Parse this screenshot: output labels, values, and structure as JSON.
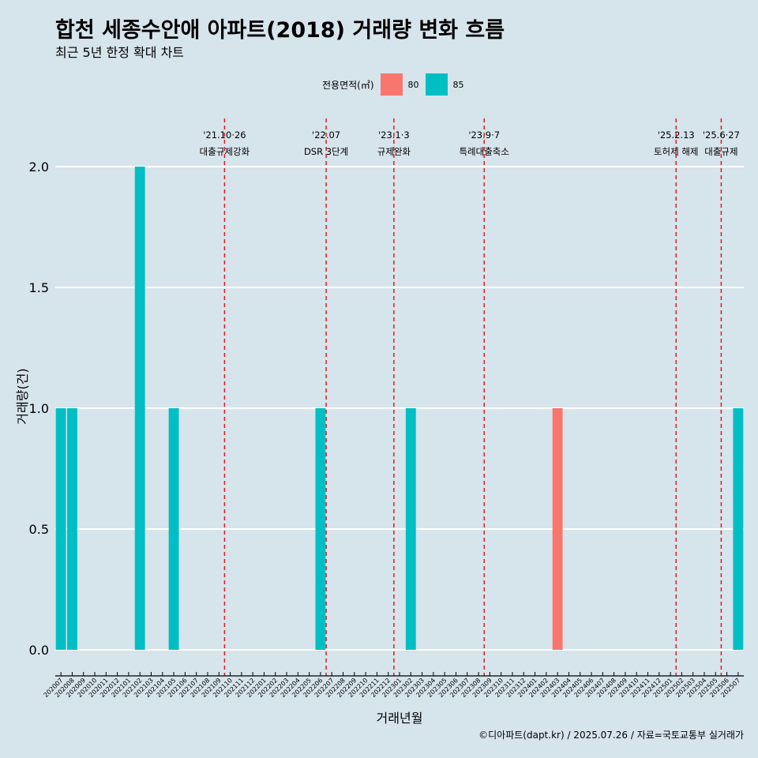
{
  "title": "합천 세종수안애 아파트(2018) 거래량 변화 흐름",
  "subtitle": "최근 5년 한정 확대 차트",
  "caption": "©디아파트(dapt.kr) / 2025.07.26 / 자료=국토교통부 실거래가",
  "colors": {
    "background": "#d6e4ec",
    "s80": "#f8766d",
    "s85": "#00bfc4",
    "event_line": "#e41a1c"
  },
  "chart_data": {
    "type": "bar",
    "xlabel": "거래년월",
    "ylabel": "거래량(건)",
    "ylim": [
      0,
      2.0
    ],
    "yticks": [
      0.0,
      0.5,
      1.0,
      1.5,
      2.0
    ],
    "grid": true,
    "legend": {
      "title": "전용면적(㎡)",
      "position": "top",
      "entries": [
        "80",
        "85"
      ]
    },
    "categories": [
      "202007",
      "202008",
      "202009",
      "202010",
      "202011",
      "202012",
      "202101",
      "202102",
      "202103",
      "202104",
      "202105",
      "202106",
      "202107",
      "202108",
      "202109",
      "202110",
      "202111",
      "202112",
      "202201",
      "202202",
      "202203",
      "202204",
      "202205",
      "202206",
      "202207",
      "202208",
      "202209",
      "202210",
      "202211",
      "202212",
      "202301",
      "202302",
      "202303",
      "202304",
      "202305",
      "202306",
      "202307",
      "202308",
      "202309",
      "202310",
      "202311",
      "202312",
      "202401",
      "202402",
      "202403",
      "202404",
      "202405",
      "202406",
      "202407",
      "202408",
      "202409",
      "202410",
      "202411",
      "202412",
      "202501",
      "202502",
      "202503",
      "202504",
      "202505",
      "202506",
      "202507"
    ],
    "series": [
      {
        "name": "80",
        "values": [
          0,
          0,
          0,
          0,
          0,
          0,
          0,
          0,
          0,
          0,
          0,
          0,
          0,
          0,
          0,
          0,
          0,
          0,
          0,
          0,
          0,
          0,
          0,
          0,
          0,
          0,
          0,
          0,
          0,
          0,
          0,
          0,
          0,
          0,
          0,
          0,
          0,
          0,
          0,
          0,
          0,
          0,
          0,
          0,
          1,
          0,
          0,
          0,
          0,
          0,
          0,
          0,
          0,
          0,
          0,
          0,
          0,
          0,
          0,
          0,
          0
        ]
      },
      {
        "name": "85",
        "values": [
          1,
          1,
          0,
          0,
          0,
          0,
          0,
          2,
          0,
          0,
          1,
          0,
          0,
          0,
          0,
          0,
          0,
          0,
          0,
          0,
          0,
          0,
          0,
          1,
          0,
          0,
          0,
          0,
          0,
          0,
          0,
          1,
          0,
          0,
          0,
          0,
          0,
          0,
          0,
          0,
          0,
          0,
          0,
          0,
          0,
          0,
          0,
          0,
          0,
          0,
          0,
          0,
          0,
          0,
          0,
          0,
          0,
          0,
          0,
          0,
          1
        ]
      }
    ],
    "events": [
      {
        "pos": 15.0,
        "date": "'21.10·26",
        "label": "대출규제강화",
        "dashed": true
      },
      {
        "pos": 24.0,
        "date": "'22.07",
        "label": "DSR 3단계",
        "dashed": true
      },
      {
        "pos": 30.0,
        "date": "'23.1·3",
        "label": "규제완화",
        "dashed": true
      },
      {
        "pos": 38.0,
        "date": "'23.9·7",
        "label": "특례대출축소",
        "dashed": true
      },
      {
        "pos": 55.0,
        "date": "'25.2.13",
        "label": "토허제 해제",
        "dashed": true
      },
      {
        "pos": 59.0,
        "date": "'25.6·27",
        "label": "대출규제",
        "dashed": true
      }
    ]
  }
}
